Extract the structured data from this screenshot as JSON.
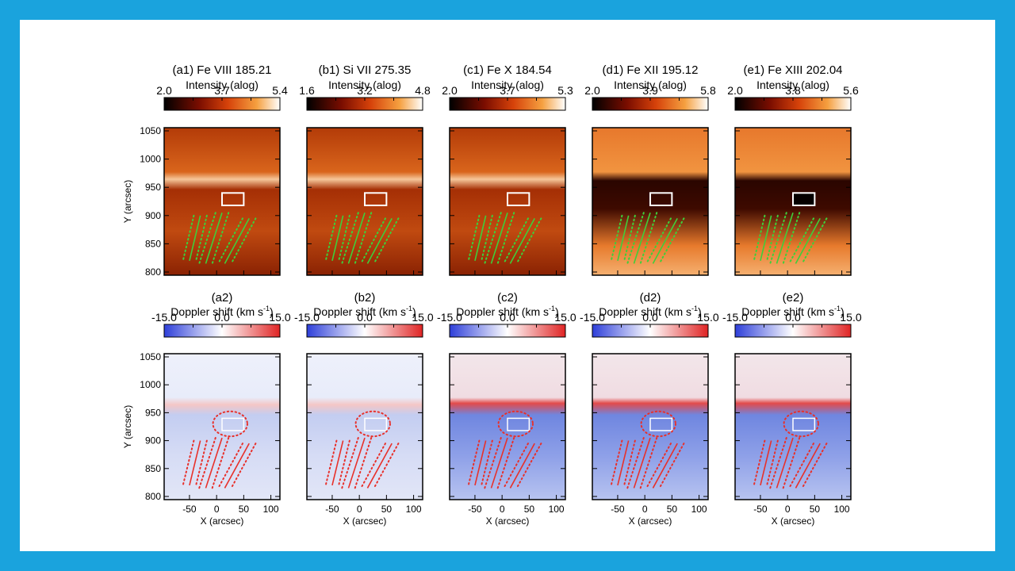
{
  "panels_top": [
    {
      "label": "(a1) Fe VIII 185.21",
      "cb_title": "Intensity (alog)",
      "cb_ticks": [
        "2.0",
        "3.7",
        "5.4"
      ],
      "cmap": "hot",
      "dark_box": false
    },
    {
      "label": "(b1) Si VII 275.35",
      "cb_title": "Intensity (alog)",
      "cb_ticks": [
        "1.6",
        "3.2",
        "4.8"
      ],
      "cmap": "hot",
      "dark_box": false
    },
    {
      "label": "(c1) Fe X 184.54",
      "cb_title": "Intensity (alog)",
      "cb_ticks": [
        "2.0",
        "3.7",
        "5.3"
      ],
      "cmap": "hot",
      "dark_box": false
    },
    {
      "label": "(d1) Fe XII 195.12",
      "cb_title": "Intensity (alog)",
      "cb_ticks": [
        "2.0",
        "3.9",
        "5.8"
      ],
      "cmap": "hot",
      "dark_box": false
    },
    {
      "label": "(e1) Fe XIII 202.04",
      "cb_title": "Intensity (alog)",
      "cb_ticks": [
        "2.0",
        "3.8",
        "5.6"
      ],
      "cmap": "hot",
      "dark_box": true
    }
  ],
  "panels_bottom": [
    {
      "label": "(a2)",
      "cb_title": "Doppler shift (km s",
      "cb_unit_sup": "-1",
      "cb_close": ")",
      "cb_ticks": [
        "-15.0",
        "0.0",
        "15.0"
      ],
      "cmap": "bwr"
    },
    {
      "label": "(b2)",
      "cb_title": "Doppler shift (km s",
      "cb_unit_sup": "-1",
      "cb_close": ")",
      "cb_ticks": [
        "-15.0",
        "0.0",
        "15.0"
      ],
      "cmap": "bwr"
    },
    {
      "label": "(c2)",
      "cb_title": "Doppler shift (km s",
      "cb_unit_sup": "-1",
      "cb_close": ")",
      "cb_ticks": [
        "-15.0",
        "0.0",
        "15.0"
      ],
      "cmap": "bwr"
    },
    {
      "label": "(d2)",
      "cb_title": "Doppler shift (km s",
      "cb_unit_sup": "-1",
      "cb_close": ")",
      "cb_ticks": [
        "-15.0",
        "0.0",
        "15.0"
      ],
      "cmap": "bwr"
    },
    {
      "label": "(e2)",
      "cb_title": "Doppler shift (km s",
      "cb_unit_sup": "-1",
      "cb_close": ")",
      "cb_ticks": [
        "-15.0",
        "0.0",
        "15.0"
      ],
      "cmap": "bwr"
    }
  ],
  "axes": {
    "ylabel": "Y (arcsec)",
    "xlabel": "X (arcsec)",
    "yticks": [
      "1050",
      "1000",
      "950",
      "900",
      "850",
      "800"
    ],
    "xticks": [
      "-50",
      "0",
      "50",
      "100"
    ]
  },
  "colors": {
    "slide_border": "#1aa3dd",
    "box_outline": "#ffffff",
    "loop_green": "#3ecf3a",
    "loop_red": "#e8302a"
  }
}
